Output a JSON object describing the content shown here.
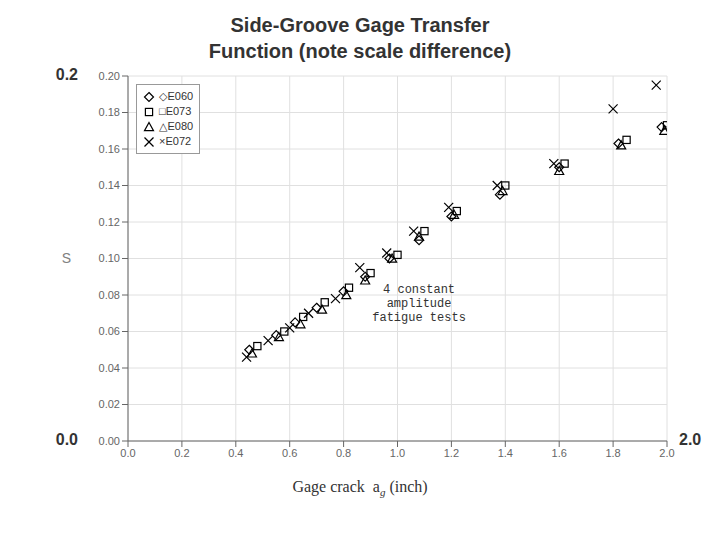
{
  "chart_data": {
    "type": "scatter",
    "title": "Side-Groove Gage Transfer\nFunction (note scale difference)",
    "xlabel": [
      "Gage crack  a",
      "g",
      " (inch)"
    ],
    "ylabel": "S",
    "xlim": [
      0,
      2.0
    ],
    "ylim": [
      0,
      0.2
    ],
    "xticks": [
      {
        "value": 0,
        "label": "0.0"
      },
      0.2,
      0.4,
      0.6,
      0.8,
      {
        "value": 1.0,
        "label": "1.0"
      },
      1.2,
      1.4,
      1.6,
      1.8,
      {
        "value": 2.0,
        "label": "2.0"
      }
    ],
    "yticks": [
      {
        "value": 0,
        "label": "0.00"
      },
      0.02,
      0.04,
      0.06,
      0.08,
      {
        "value": 0.1,
        "label": "0.10"
      },
      0.12,
      0.14,
      0.16,
      0.18,
      {
        "value": 0.2,
        "label": "0.20"
      }
    ],
    "grid": true,
    "legend": "upper left",
    "series": [
      {
        "name": "◇E060",
        "color": "black",
        "marker": "diamond",
        "x": [
          0.45,
          0.55,
          0.62,
          0.7,
          0.8,
          0.88,
          0.97,
          1.08,
          1.2,
          1.38,
          1.6,
          1.82,
          1.98
        ],
        "values": [
          0.05,
          0.058,
          0.065,
          0.073,
          0.082,
          0.09,
          0.1,
          0.11,
          0.123,
          0.135,
          0.15,
          0.163,
          0.172
        ]
      },
      {
        "name": "□E073",
        "color": "black",
        "marker": "square",
        "x": [
          0.48,
          0.58,
          0.65,
          0.73,
          0.82,
          0.9,
          1.0,
          1.1,
          1.22,
          1.4,
          1.62,
          1.85,
          2.0
        ],
        "values": [
          0.052,
          0.06,
          0.068,
          0.076,
          0.084,
          0.092,
          0.102,
          0.115,
          0.126,
          0.14,
          0.152,
          0.165,
          0.173
        ]
      },
      {
        "name": "△E080",
        "color": "black",
        "marker": "triangle",
        "x": [
          0.46,
          0.56,
          0.64,
          0.72,
          0.81,
          0.88,
          0.98,
          1.08,
          1.21,
          1.39,
          1.6,
          1.83,
          1.99
        ],
        "values": [
          0.048,
          0.057,
          0.064,
          0.072,
          0.08,
          0.088,
          0.1,
          0.112,
          0.124,
          0.137,
          0.148,
          0.162,
          0.17
        ]
      },
      {
        "name": "×E072",
        "color": "black",
        "marker": "x",
        "x": [
          0.44,
          0.52,
          0.6,
          0.67,
          0.77,
          0.86,
          0.96,
          1.06,
          1.19,
          1.37,
          1.58,
          1.8,
          1.96
        ],
        "values": [
          0.046,
          0.055,
          0.062,
          0.07,
          0.078,
          0.095,
          0.103,
          0.115,
          0.128,
          0.14,
          0.152,
          0.182,
          0.195
        ]
      }
    ],
    "annotations": [
      {
        "text": "4 constant\namplitude\nfatigue tests",
        "x": 1.08,
        "y": 0.075
      },
      {
        "text": "0.2",
        "x": 0,
        "y": 0.2
      },
      {
        "text": "0.0",
        "x": 0,
        "y": 0
      },
      {
        "text": "2.0",
        "x": 2.0,
        "y": 0
      }
    ]
  }
}
